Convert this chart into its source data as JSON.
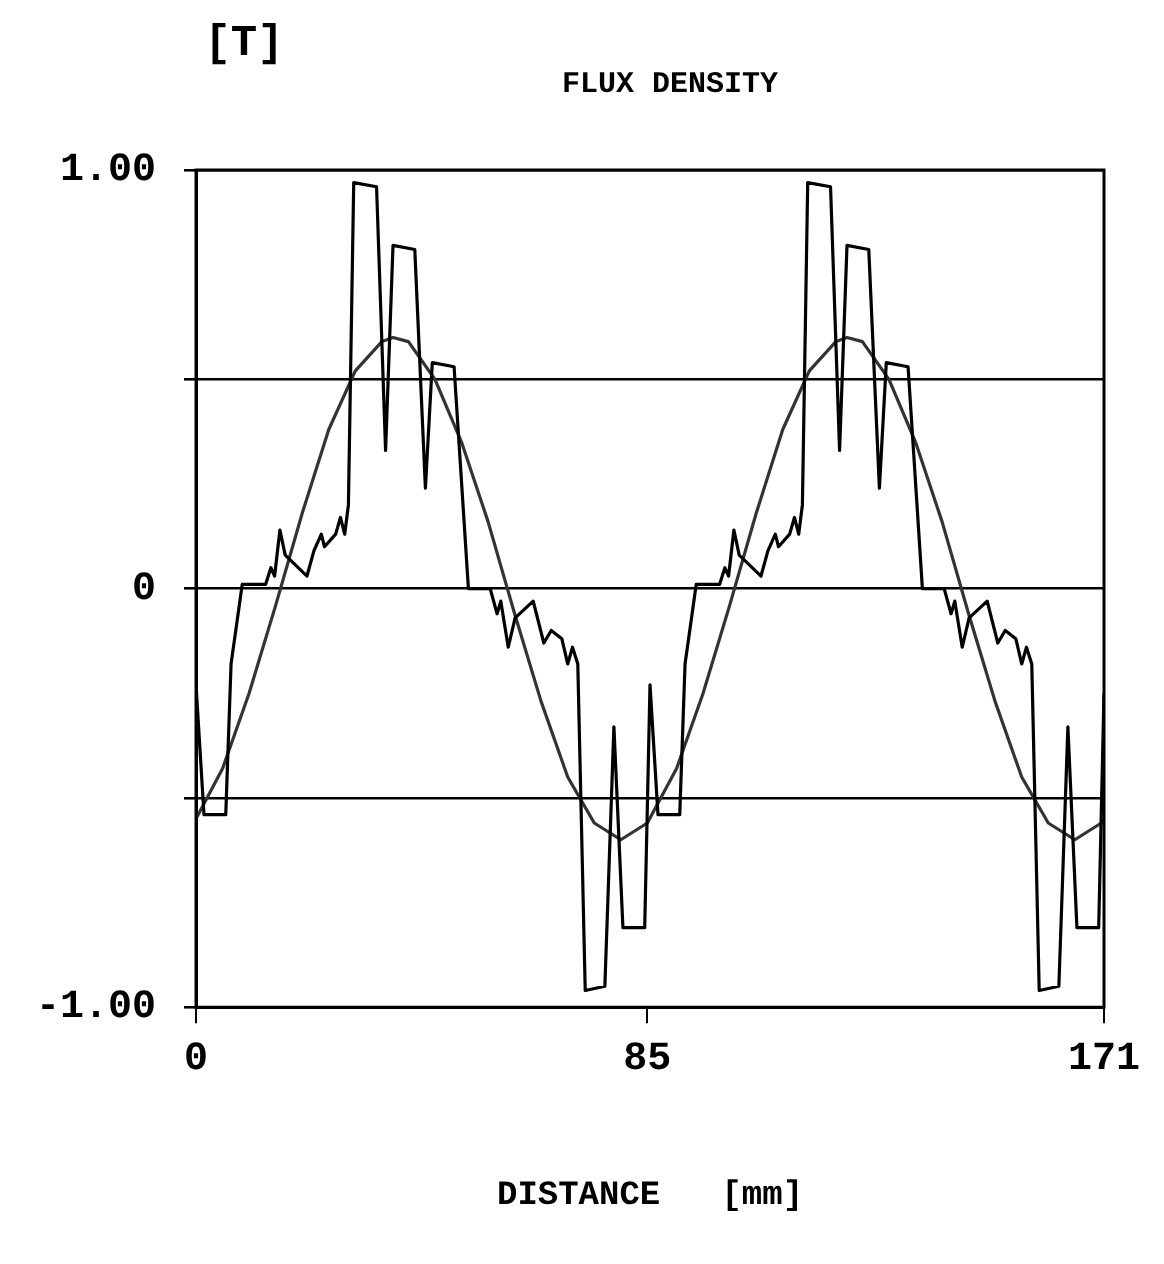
{
  "chart_data": {
    "type": "line",
    "title": "FLUX DENSITY",
    "ylabel": "[T]",
    "xlabel": "DISTANCE   [mm]",
    "xlim": [
      0,
      171
    ],
    "xticks": [
      0,
      85,
      171
    ],
    "ylim": [
      -1,
      1
    ],
    "yticks": [
      {
        "value": -1,
        "label": "-1.00"
      },
      {
        "value": -0.5,
        "label": null
      },
      0,
      {
        "value": 0.5,
        "label": null
      },
      {
        "value": 1,
        "label": "1.00"
      }
    ],
    "grid": "y",
    "legend": false,
    "marker": "none",
    "line_style": "solid",
    "series": [
      {
        "color": "#000000",
        "x": [
          0,
          1.5,
          5.6,
          6.6,
          8.7,
          13.1,
          14.1,
          14.8,
          15.8,
          16.8,
          20.9,
          22.2,
          23.6,
          24.2,
          26.3,
          27.2,
          28.0,
          28.7,
          29.7,
          34.0,
          35.7,
          37.1,
          41.2,
          43.2,
          44.5,
          48.6,
          51.3,
          55.4,
          56.7,
          57.4,
          58.8,
          60.1,
          63.5,
          65.5,
          66.9,
          68.9,
          70.0,
          70.9,
          71.9,
          73.3,
          77.0,
          78.7,
          80.4,
          84.5,
          85.5,
          87.0,
          91.1,
          92.1,
          94.2,
          98.6,
          99.6,
          100.3,
          101.3,
          102.3,
          106.4,
          107.7,
          109.1,
          109.7,
          111.8,
          112.7,
          113.5,
          114.2,
          115.2,
          119.5,
          121.2,
          122.6,
          126.7,
          128.7,
          130.0,
          134.1,
          136.8,
          140.9,
          142.2,
          142.9,
          144.3,
          145.6,
          149.0,
          151.0,
          152.4,
          154.4,
          155.5,
          156.4,
          157.4,
          158.8,
          162.5,
          164.2,
          165.9,
          170.0,
          171
        ],
        "values": [
          -0.23,
          -0.54,
          -0.54,
          -0.18,
          0.01,
          0.01,
          0.05,
          0.03,
          0.14,
          0.08,
          0.03,
          0.09,
          0.13,
          0.1,
          0.13,
          0.17,
          0.13,
          0.2,
          0.97,
          0.96,
          0.33,
          0.82,
          0.81,
          0.24,
          0.54,
          0.53,
          0.0,
          0.0,
          -0.06,
          -0.03,
          -0.14,
          -0.07,
          -0.03,
          -0.13,
          -0.1,
          -0.12,
          -0.18,
          -0.14,
          -0.18,
          -0.96,
          -0.95,
          -0.33,
          -0.81,
          -0.81,
          -0.23,
          -0.54,
          -0.54,
          -0.18,
          0.01,
          0.01,
          0.05,
          0.03,
          0.14,
          0.08,
          0.03,
          0.09,
          0.13,
          0.1,
          0.13,
          0.17,
          0.13,
          0.2,
          0.97,
          0.96,
          0.33,
          0.82,
          0.81,
          0.24,
          0.54,
          0.53,
          0.0,
          0.0,
          -0.06,
          -0.03,
          -0.14,
          -0.07,
          -0.03,
          -0.13,
          -0.1,
          -0.12,
          -0.18,
          -0.14,
          -0.18,
          -0.96,
          -0.95,
          -0.33,
          -0.81,
          -0.81,
          -0.25
        ]
      },
      {
        "color": "#333333",
        "x": [
          0,
          5,
          10,
          15,
          20,
          25,
          30,
          35,
          37.1,
          40,
          45,
          50,
          55,
          60,
          65,
          70,
          75,
          80,
          85,
          90.5,
          95.5,
          100.5,
          105.5,
          110.5,
          115.5,
          120.5,
          122.6,
          125.5,
          130.5,
          135.5,
          140.5,
          145.5,
          150.5,
          155.5,
          160.5,
          165.5,
          170.5,
          171
        ],
        "values": [
          -0.55,
          -0.43,
          -0.25,
          -0.04,
          0.18,
          0.38,
          0.52,
          0.59,
          0.6,
          0.59,
          0.5,
          0.35,
          0.16,
          -0.06,
          -0.27,
          -0.45,
          -0.56,
          -0.6,
          -0.56,
          -0.43,
          -0.25,
          -0.04,
          0.18,
          0.38,
          0.52,
          0.59,
          0.6,
          0.59,
          0.5,
          0.35,
          0.16,
          -0.06,
          -0.27,
          -0.45,
          -0.56,
          -0.6,
          -0.56,
          -0.55
        ]
      }
    ]
  }
}
